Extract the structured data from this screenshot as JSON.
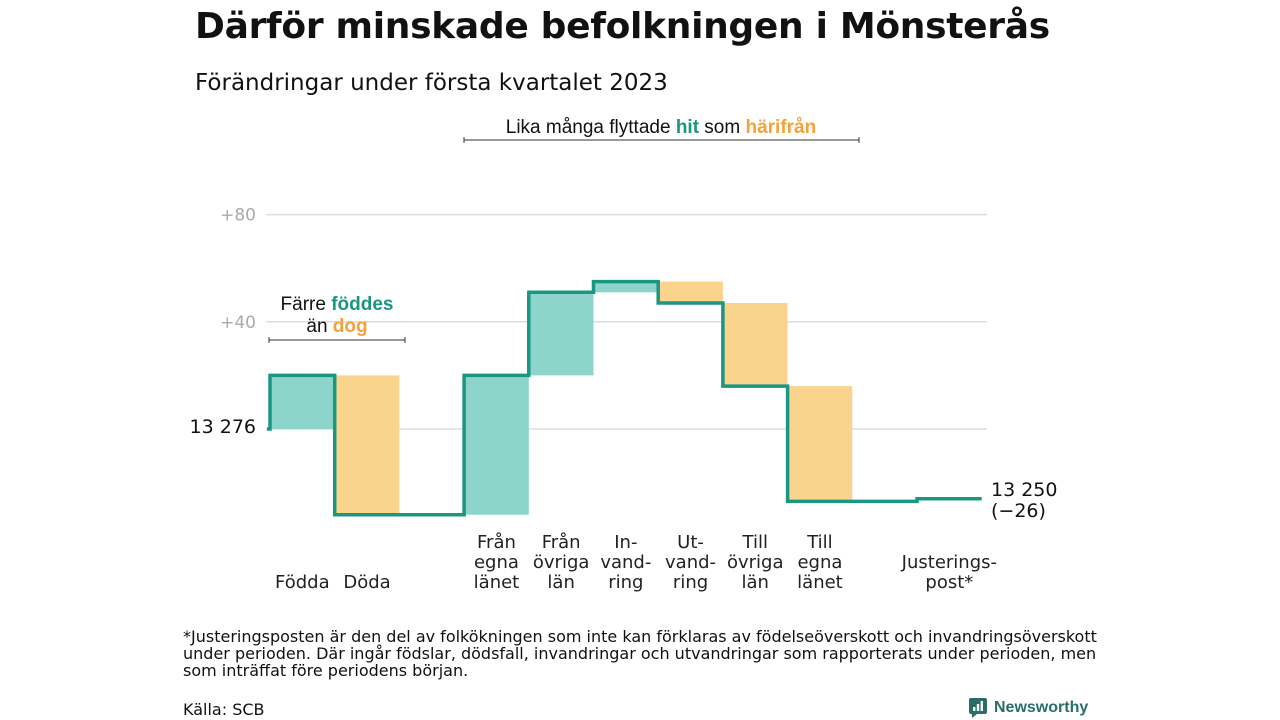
{
  "title": "Därför minskade befolkningen i Mönsterås",
  "subtitle": "Förändringar under första kvartalet 2023",
  "chart_data": {
    "type": "bar",
    "variant": "waterfall",
    "start_value": 13276,
    "start_label": "13 276",
    "end_value": 13250,
    "end_label": "13 250",
    "end_change_label": "(−26)",
    "categories": [
      "Födda",
      "Döda",
      "",
      "Från egna länet",
      "Från övriga län",
      "In-vandring",
      "Ut-vandring",
      "Till övriga län",
      "Till egna länet",
      "",
      "Justerings-post*"
    ],
    "category_lines": [
      [
        "Födda"
      ],
      [
        "Döda"
      ],
      [],
      [
        "Från",
        "egna",
        "länet"
      ],
      [
        "Från",
        "övriga",
        "län"
      ],
      [
        "In-",
        "vand-",
        "ring"
      ],
      [
        "Ut-",
        "vand-",
        "ring"
      ],
      [
        "Till",
        "övriga",
        "län"
      ],
      [
        "Till",
        "egna",
        "länet"
      ],
      [],
      [
        "Justerings-",
        "post*"
      ]
    ],
    "changes": [
      20,
      -52,
      0,
      52,
      31,
      4,
      -8,
      -31,
      -43,
      0,
      1
    ],
    "colors": {
      "increase": "#8dd5cb",
      "decrease": "#fad48d",
      "line": "#1a9683"
    },
    "yticks": [
      {
        "value": 40,
        "label": "+40"
      },
      {
        "value": 80,
        "label": "+80"
      }
    ],
    "ylim": [
      -32,
      120
    ],
    "grid": true,
    "annotations": {
      "births": {
        "line1": "Färre ",
        "hl1": "föddes",
        "line2": "än ",
        "hl2": "dog"
      },
      "migration": {
        "pre": "Lika många flyttade ",
        "hl1": "hit",
        "mid": " som ",
        "hl2": "härifrån"
      }
    }
  },
  "footnote": "*Justeringsposten är den del av folkökningen som inte kan förklaras av födelseöverskott och invandringsöverskott under perioden. Där ingår födslar, dödsfall, invandringar och utvandringar som rapporterats under perioden, men som inträffat före periodens början.",
  "source": "Källa: SCB",
  "brand": {
    "name": "Newsworthy",
    "icon": "newsworthy-logo-icon"
  }
}
